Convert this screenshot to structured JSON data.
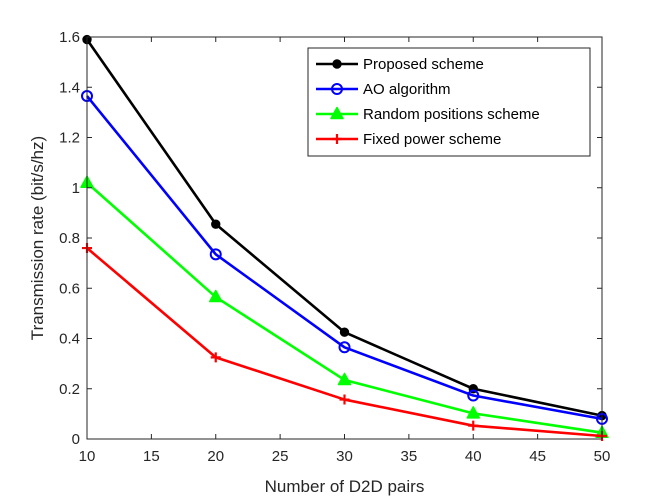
{
  "chart_data": {
    "type": "line",
    "title": "",
    "xlabel": "Number of D2D pairs",
    "ylabel": "Transmission rate (bit/s/hz)",
    "xlim": [
      10,
      50
    ],
    "ylim": [
      0,
      1.6
    ],
    "xticks": [
      10,
      15,
      20,
      25,
      30,
      35,
      40,
      45,
      50
    ],
    "yticks": [
      0,
      0.2,
      0.4,
      0.6,
      0.8,
      1,
      1.2,
      1.4,
      1.6
    ],
    "xtick_labels": [
      "10",
      "15",
      "20",
      "25",
      "30",
      "35",
      "40",
      "45",
      "50"
    ],
    "ytick_labels": [
      "0",
      "0.2",
      "0.4",
      "0.6",
      "0.8",
      "1",
      "1.2",
      "1.4",
      "1.6"
    ],
    "grid": false,
    "legend_position": "top-right",
    "x": [
      10,
      20,
      30,
      40,
      50
    ],
    "series": [
      {
        "name": "Proposed scheme",
        "color": "#000000",
        "marker": "filled-circle",
        "values": [
          1.59,
          0.855,
          0.425,
          0.2,
          0.093
        ]
      },
      {
        "name": "AO algorithm",
        "color": "#0000ff",
        "marker": "open-circle",
        "values": [
          1.365,
          0.735,
          0.365,
          0.173,
          0.08
        ]
      },
      {
        "name": "Random positions scheme",
        "color": "#00ff00",
        "marker": "triangle",
        "values": [
          1.02,
          0.565,
          0.235,
          0.102,
          0.025
        ]
      },
      {
        "name": "Fixed power scheme",
        "color": "#ff0000",
        "marker": "plus",
        "values": [
          0.76,
          0.325,
          0.157,
          0.053,
          0.012
        ]
      }
    ]
  }
}
